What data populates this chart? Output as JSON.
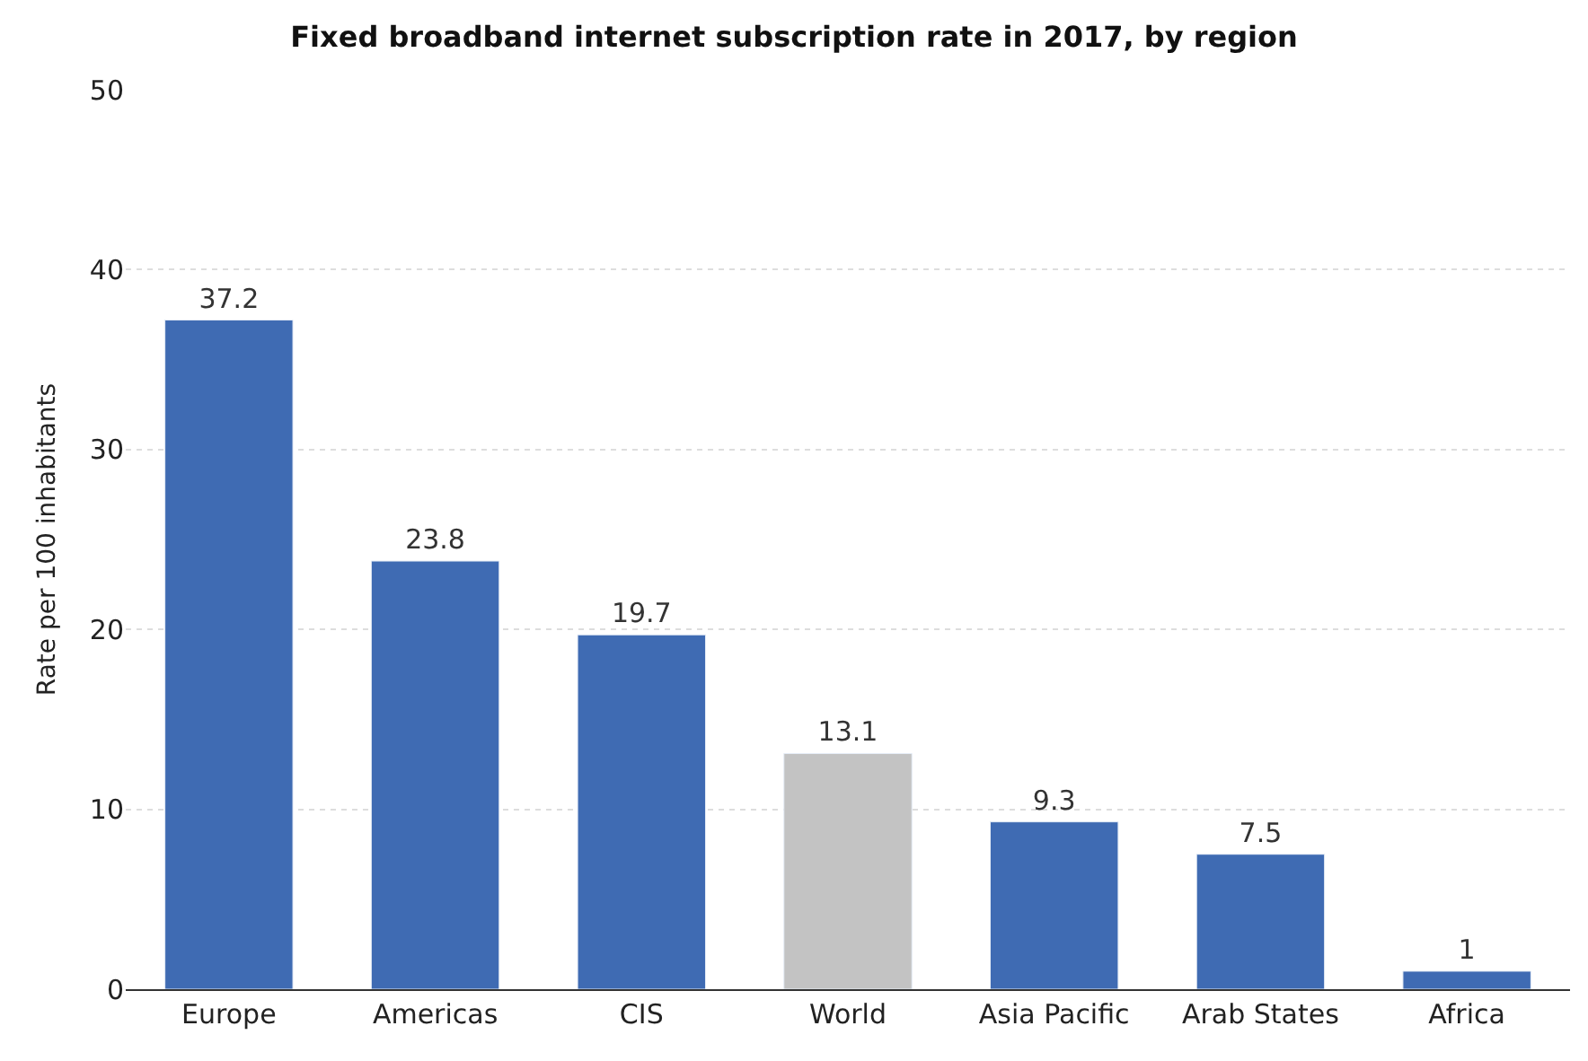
{
  "chart_data": {
    "type": "bar",
    "title": "Fixed broadband internet subscription rate in 2017, by region",
    "ylabel": "Rate per 100 inhabitants",
    "categories": [
      "Europe",
      "Americas",
      "CIS",
      "World",
      "Asia Pacific",
      "Arab States",
      "Africa"
    ],
    "values": [
      37.2,
      23.8,
      19.7,
      13.1,
      9.3,
      7.5,
      1
    ],
    "colors": [
      "#3f6bb3",
      "#3f6bb3",
      "#3f6bb3",
      "#c3c3c3",
      "#3f6bb3",
      "#3f6bb3",
      "#3f6bb3"
    ],
    "ylim": [
      0,
      50
    ],
    "yticks": [
      0,
      10,
      20,
      30,
      40,
      50
    ],
    "grid": "y",
    "data_labels": true
  }
}
